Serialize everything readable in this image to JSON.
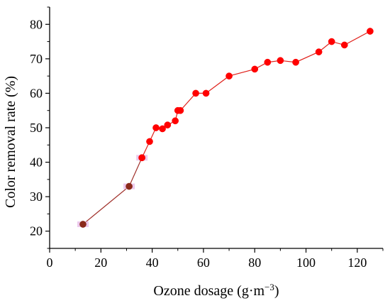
{
  "chart_data": {
    "type": "line",
    "xlabel": "Ozone dosage (g·m",
    "xlabel_sup": "−3",
    "xlabel_close": ")",
    "ylabel": "Color removal rate (%)",
    "title": "",
    "xlim": [
      0,
      130
    ],
    "ylim": [
      15,
      85
    ],
    "x_ticks": [
      0,
      20,
      40,
      60,
      80,
      100,
      120
    ],
    "y_ticks": [
      20,
      30,
      40,
      50,
      60,
      70,
      80
    ],
    "grid": false,
    "marker": "circle",
    "series": [
      {
        "x": [
          13,
          31,
          36
        ],
        "y": [
          22,
          33,
          41.3
        ],
        "color": "#a0302a",
        "marker_color": "#8b2a1a",
        "halo_color": "#e6b3e6"
      },
      {
        "x": [
          36,
          39,
          41.5,
          44,
          46,
          49,
          50,
          51,
          57,
          61,
          70,
          80,
          85,
          90,
          96,
          105,
          110,
          115,
          125
        ],
        "y": [
          41.3,
          46,
          50,
          49.7,
          50.8,
          52,
          55,
          55,
          60,
          60,
          65,
          67,
          69,
          69.5,
          69,
          72,
          75,
          74,
          78
        ],
        "color": "#e0201a",
        "marker_color": "#ff0000"
      }
    ]
  }
}
